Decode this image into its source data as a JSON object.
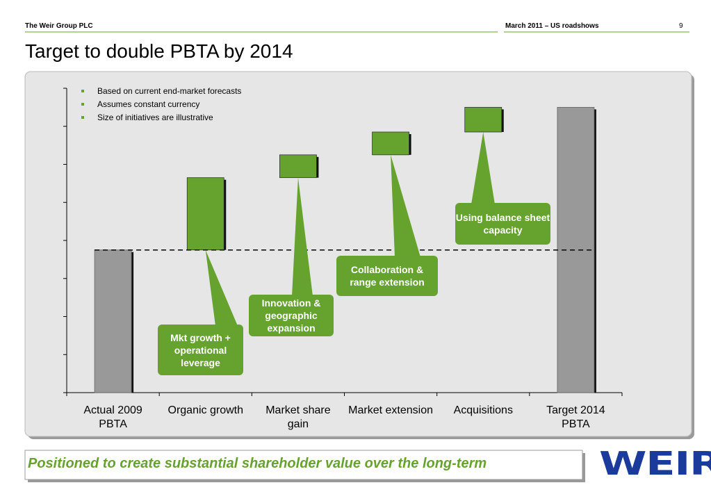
{
  "header": {
    "company": "The Weir Group PLC",
    "event": "March 2011 – US roadshows",
    "page": "9"
  },
  "chart_data": {
    "type": "waterfall",
    "title": "Target to double PBTA by 2014",
    "notes": [
      "Based on current end-market forecasts",
      "Assumes constant currency",
      "Size of initiatives are illustrative"
    ],
    "categories": [
      "Actual 2009 PBTA",
      "Organic growth",
      "Market share gain",
      "Market extension",
      "Acquisitions",
      "Target 2014 PBTA"
    ],
    "values": [
      3.75,
      1.9,
      0.6,
      0.6,
      0.65,
      7.5
    ],
    "measure": [
      "total",
      "relative",
      "relative",
      "relative",
      "relative",
      "total"
    ],
    "color": "#66a32e",
    "total_color": "#999999",
    "ylim": [
      0,
      8
    ],
    "yticks": [
      0,
      1,
      2,
      3,
      4,
      5,
      6,
      7,
      8
    ],
    "annotations": [
      "Mkt growth + operational leverage",
      "Innovation & geographic expansion",
      "Collaboration & range extension",
      "Using balance sheet capacity"
    ]
  },
  "footer": {
    "tagline": "Positioned to create substantial shareholder value over the long-term",
    "logo": "WEIR"
  }
}
